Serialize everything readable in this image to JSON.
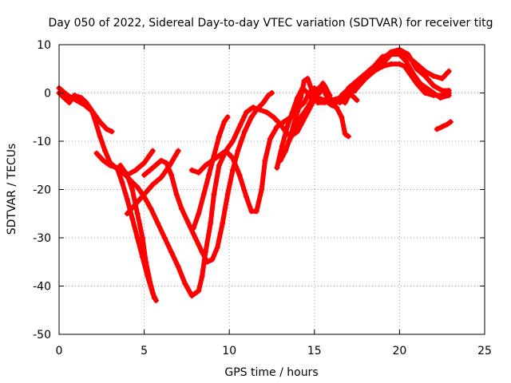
{
  "chart_data": {
    "type": "scatter",
    "title": "Day 050 of 2022, Sidereal Day-to-day VTEC variation (SDTVAR) for receiver titg",
    "xlabel": "GPS time / hours",
    "ylabel": "SDTVAR / TECUs",
    "xlim": [
      0,
      25
    ],
    "ylim": [
      -50,
      10
    ],
    "xticks": [
      0,
      5,
      10,
      15,
      20,
      25
    ],
    "yticks": [
      -50,
      -40,
      -30,
      -20,
      -10,
      0,
      10
    ],
    "grid": true,
    "legend": "none",
    "marker": "plus",
    "colors": {
      "series": "#ff0000",
      "grid": "#a0a0a0",
      "axis": "#000000"
    },
    "series": [
      {
        "points": [
          [
            0.0,
            1.0
          ],
          [
            0.5,
            -0.5
          ],
          [
            1.0,
            -1.5
          ],
          [
            1.5,
            -2.5
          ],
          [
            2.0,
            -4.0
          ],
          [
            2.4,
            -6.0
          ],
          [
            2.8,
            -7.5
          ],
          [
            3.1,
            -8.0
          ]
        ]
      },
      {
        "points": [
          [
            0.0,
            0.0
          ],
          [
            0.3,
            -1.0
          ],
          [
            0.6,
            -2.0
          ],
          [
            0.9,
            -0.5
          ],
          [
            1.3,
            -1.0
          ],
          [
            1.6,
            -2.0
          ],
          [
            1.9,
            -3.5
          ],
          [
            2.1,
            -5.5
          ],
          [
            2.4,
            -9.0
          ],
          [
            2.7,
            -12.0
          ],
          [
            3.0,
            -14.5
          ],
          [
            3.5,
            -16.0
          ],
          [
            3.9,
            -17.0
          ],
          [
            4.3,
            -18.5
          ],
          [
            4.6,
            -19.5
          ],
          [
            5.0,
            -21.5
          ],
          [
            5.4,
            -24.0
          ],
          [
            5.8,
            -27.0
          ],
          [
            6.2,
            -30.0
          ],
          [
            6.6,
            -33.0
          ],
          [
            7.0,
            -36.0
          ],
          [
            7.4,
            -39.5
          ],
          [
            7.8,
            -42.0
          ],
          [
            8.2,
            -41.0
          ],
          [
            8.4,
            -38.0
          ],
          [
            8.6,
            -33.0
          ],
          [
            8.9,
            -27.0
          ],
          [
            9.1,
            -21.0
          ],
          [
            9.4,
            -15.0
          ],
          [
            9.8,
            -12.0
          ],
          [
            10.2,
            -13.5
          ],
          [
            10.6,
            -17.0
          ],
          [
            11.0,
            -21.5
          ],
          [
            11.3,
            -24.5
          ],
          [
            11.6,
            -24.5
          ],
          [
            11.9,
            -20.0
          ],
          [
            12.1,
            -14.0
          ],
          [
            12.4,
            -9.5
          ],
          [
            12.8,
            -7.0
          ],
          [
            13.2,
            -6.0
          ],
          [
            13.6,
            -5.0
          ],
          [
            13.9,
            -4.0
          ],
          [
            14.2,
            -1.0
          ],
          [
            14.4,
            2.5
          ],
          [
            14.6,
            3.0
          ],
          [
            14.9,
            0.0
          ],
          [
            15.2,
            -2.0
          ],
          [
            15.6,
            -2.0
          ],
          [
            16.0,
            -1.5
          ],
          [
            16.5,
            -1.0
          ],
          [
            17.0,
            -0.5
          ],
          [
            17.5,
            1.0
          ],
          [
            18.0,
            3.0
          ],
          [
            18.5,
            5.0
          ],
          [
            19.0,
            7.0
          ],
          [
            19.5,
            8.5
          ],
          [
            20.0,
            9.0
          ],
          [
            20.5,
            8.0
          ],
          [
            21.0,
            5.0
          ],
          [
            21.5,
            3.5
          ],
          [
            22.0,
            1.5
          ],
          [
            22.5,
            0.5
          ],
          [
            22.9,
            0.5
          ]
        ]
      },
      {
        "points": [
          [
            2.2,
            -12.5
          ],
          [
            2.6,
            -14.0
          ],
          [
            3.0,
            -15.0
          ],
          [
            3.4,
            -15.5
          ],
          [
            3.7,
            -18.5
          ],
          [
            4.0,
            -22.0
          ],
          [
            4.3,
            -26.0
          ],
          [
            4.6,
            -30.0
          ],
          [
            4.9,
            -34.0
          ],
          [
            5.2,
            -38.0
          ],
          [
            5.5,
            -41.5
          ],
          [
            5.7,
            -43.0
          ]
        ]
      },
      {
        "points": [
          [
            3.6,
            -15.0
          ],
          [
            4.0,
            -17.0
          ],
          [
            4.3,
            -20.0
          ],
          [
            4.6,
            -25.0
          ],
          [
            4.9,
            -30.0
          ],
          [
            5.1,
            -35.0
          ],
          [
            5.4,
            -40.0
          ],
          [
            5.6,
            -42.5
          ]
        ]
      },
      {
        "points": [
          [
            4.0,
            -25.0
          ],
          [
            4.5,
            -23.0
          ],
          [
            5.0,
            -21.0
          ],
          [
            5.5,
            -19.0
          ],
          [
            6.0,
            -17.5
          ],
          [
            6.5,
            -15.0
          ],
          [
            7.0,
            -12.0
          ]
        ]
      },
      {
        "points": [
          [
            4.0,
            -17.0
          ],
          [
            4.5,
            -16.0
          ],
          [
            5.0,
            -14.5
          ],
          [
            5.3,
            -13.0
          ],
          [
            5.5,
            -12.0
          ]
        ]
      },
      {
        "points": [
          [
            5.0,
            -17.0
          ],
          [
            5.5,
            -15.5
          ],
          [
            6.0,
            -14.0
          ],
          [
            6.3,
            -14.5
          ],
          [
            6.6,
            -17.0
          ],
          [
            6.9,
            -21.0
          ],
          [
            7.2,
            -24.0
          ],
          [
            7.6,
            -27.0
          ],
          [
            8.0,
            -30.0
          ],
          [
            8.4,
            -33.0
          ],
          [
            8.7,
            -35.0
          ],
          [
            9.0,
            -34.5
          ],
          [
            9.3,
            -32.0
          ],
          [
            9.6,
            -27.0
          ],
          [
            9.9,
            -21.0
          ],
          [
            10.2,
            -16.0
          ],
          [
            10.5,
            -12.0
          ],
          [
            10.9,
            -8.0
          ],
          [
            11.3,
            -5.0
          ],
          [
            11.6,
            -3.5
          ],
          [
            12.0,
            -2.0
          ],
          [
            12.3,
            -0.5
          ],
          [
            12.5,
            0.0
          ]
        ]
      },
      {
        "points": [
          [
            7.9,
            -28.0
          ],
          [
            8.2,
            -25.0
          ],
          [
            8.5,
            -21.0
          ],
          [
            8.8,
            -17.0
          ],
          [
            9.1,
            -13.0
          ],
          [
            9.4,
            -9.0
          ],
          [
            9.7,
            -6.0
          ],
          [
            9.9,
            -5.0
          ]
        ]
      },
      {
        "points": [
          [
            7.8,
            -16.0
          ],
          [
            8.2,
            -16.5
          ],
          [
            8.6,
            -15.0
          ],
          [
            9.0,
            -14.0
          ],
          [
            9.4,
            -13.0
          ],
          [
            9.8,
            -12.0
          ],
          [
            10.2,
            -10.0
          ],
          [
            10.6,
            -7.0
          ],
          [
            11.0,
            -4.0
          ],
          [
            11.4,
            -3.0
          ],
          [
            11.8,
            -3.5
          ],
          [
            12.2,
            -4.0
          ],
          [
            12.6,
            -5.0
          ],
          [
            13.0,
            -6.5
          ],
          [
            13.3,
            -8.0
          ],
          [
            13.6,
            -9.0
          ],
          [
            14.0,
            -8.0
          ],
          [
            14.3,
            -6.0
          ],
          [
            14.6,
            -4.0
          ],
          [
            14.9,
            -2.0
          ],
          [
            15.2,
            -1.0
          ],
          [
            15.6,
            -1.5
          ],
          [
            16.0,
            -2.5
          ],
          [
            16.3,
            -3.0
          ],
          [
            16.6,
            -5.0
          ],
          [
            16.8,
            -8.5
          ],
          [
            17.0,
            -9.0
          ]
        ]
      },
      {
        "points": [
          [
            12.8,
            -15.5
          ],
          [
            13.1,
            -11.0
          ],
          [
            13.4,
            -7.0
          ],
          [
            13.7,
            -4.0
          ],
          [
            14.0,
            -1.0
          ],
          [
            14.3,
            1.0
          ],
          [
            14.6,
            0.0
          ],
          [
            14.9,
            -1.5
          ],
          [
            15.2,
            0.0
          ],
          [
            15.5,
            2.0
          ],
          [
            15.7,
            0.5
          ],
          [
            15.9,
            -1.0
          ],
          [
            16.2,
            -2.0
          ],
          [
            16.5,
            -1.5
          ],
          [
            16.8,
            -2.0
          ],
          [
            17.1,
            0.0
          ],
          [
            17.4,
            0.5
          ]
        ]
      },
      {
        "points": [
          [
            13.5,
            -10.0
          ],
          [
            13.8,
            -8.0
          ],
          [
            14.0,
            -6.0
          ],
          [
            14.3,
            -4.5
          ],
          [
            14.6,
            -3.0
          ],
          [
            14.9,
            -1.0
          ],
          [
            15.1,
            0.5
          ],
          [
            15.4,
            1.5
          ],
          [
            15.7,
            -0.5
          ],
          [
            16.0,
            -2.5
          ],
          [
            16.3,
            -2.0
          ],
          [
            16.6,
            -0.5
          ],
          [
            16.9,
            0.5
          ],
          [
            17.2,
            -0.5
          ],
          [
            17.5,
            -1.5
          ]
        ]
      },
      {
        "points": [
          [
            13.0,
            -14.0
          ],
          [
            13.3,
            -12.0
          ],
          [
            13.6,
            -9.0
          ],
          [
            13.9,
            -5.0
          ],
          [
            14.1,
            -3.0
          ],
          [
            14.4,
            -2.0
          ],
          [
            14.7,
            0.0
          ],
          [
            15.0,
            1.0
          ],
          [
            15.3,
            0.0
          ],
          [
            15.6,
            1.5
          ],
          [
            15.9,
            -0.5
          ]
        ]
      },
      {
        "points": [
          [
            16.5,
            -2.0
          ],
          [
            17.0,
            -0.5
          ],
          [
            17.5,
            1.5
          ],
          [
            18.0,
            3.5
          ],
          [
            18.5,
            4.5
          ],
          [
            19.0,
            5.5
          ],
          [
            19.5,
            6.0
          ],
          [
            20.0,
            6.0
          ],
          [
            20.3,
            5.5
          ],
          [
            20.6,
            4.0
          ],
          [
            21.0,
            2.0
          ],
          [
            21.5,
            0.0
          ],
          [
            22.0,
            -0.5
          ],
          [
            22.5,
            -0.5
          ],
          [
            22.9,
            0.0
          ]
        ]
      },
      {
        "points": [
          [
            17.0,
            1.0
          ],
          [
            17.5,
            2.5
          ],
          [
            18.0,
            4.0
          ],
          [
            18.5,
            5.5
          ],
          [
            19.0,
            7.5
          ],
          [
            19.5,
            8.0
          ],
          [
            20.0,
            8.5
          ],
          [
            20.5,
            7.5
          ],
          [
            21.0,
            6.0
          ],
          [
            21.5,
            4.5
          ],
          [
            22.0,
            3.5
          ],
          [
            22.5,
            3.0
          ],
          [
            22.9,
            4.5
          ]
        ]
      },
      {
        "points": [
          [
            18.0,
            3.0
          ],
          [
            18.5,
            4.5
          ],
          [
            19.0,
            6.0
          ],
          [
            19.5,
            8.0
          ],
          [
            20.0,
            8.0
          ],
          [
            20.4,
            6.5
          ],
          [
            20.8,
            4.0
          ],
          [
            21.2,
            2.0
          ],
          [
            21.6,
            1.0
          ],
          [
            22.0,
            0.0
          ],
          [
            22.4,
            -1.0
          ],
          [
            22.9,
            -0.5
          ]
        ]
      },
      {
        "points": [
          [
            22.2,
            -7.5
          ],
          [
            22.5,
            -7.0
          ],
          [
            22.8,
            -6.5
          ],
          [
            23.0,
            -6.0
          ]
        ]
      }
    ]
  }
}
